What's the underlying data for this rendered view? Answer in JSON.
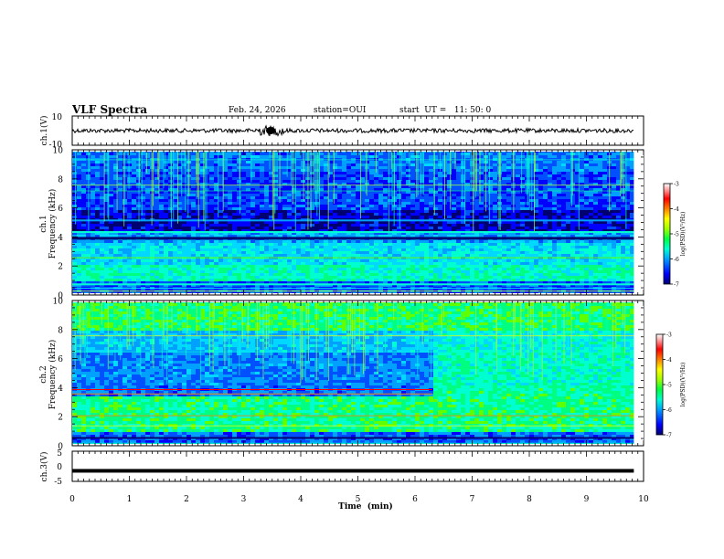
{
  "header": {
    "title": "VLF Spectra",
    "date": "Feb. 24, 2026",
    "station": "station=OUI",
    "start": "start  UT =   11: 50: 0"
  },
  "chart_data": [
    {
      "type": "line",
      "panel": "ch1-waveform",
      "ylabel": "ch.1(V)",
      "ylim": [
        -10,
        10
      ],
      "ytick_labels": [
        "10",
        "-10"
      ],
      "baseline": 0
    },
    {
      "type": "heatmap",
      "panel": "ch1-spectrogram",
      "ylabel": "ch.1\nFrequency (kHz)",
      "ylim": [
        0,
        10
      ],
      "ytick_labels": [
        "0",
        "2",
        "4",
        "6",
        "8",
        "10"
      ],
      "colorbar": {
        "label": "log(PSD)(V²/Hz)",
        "range": [
          -7,
          -3
        ],
        "tick_labels": [
          "-7",
          "-6",
          "-5",
          "-4",
          "-3"
        ],
        "colors": [
          "#000070",
          "#0000ff",
          "#00a0ff",
          "#00ffd0",
          "#00ff40",
          "#a0ff00",
          "#ffff00",
          "#ff8000",
          "#ff0000",
          "#ff9090",
          "#ffffff"
        ]
      }
    },
    {
      "type": "heatmap",
      "panel": "ch2-spectrogram",
      "ylabel": "ch.2\nFrequency (kHz)",
      "ylim": [
        0,
        10
      ],
      "ytick_labels": [
        "0",
        "2",
        "4",
        "6",
        "8",
        "10"
      ],
      "colorbar": {
        "label": "log(PSD)(V²/Hz)",
        "range": [
          -7,
          -3
        ],
        "tick_labels": [
          "-7",
          "-6",
          "-5",
          "-4",
          "-3"
        ],
        "colors": [
          "#000070",
          "#0000ff",
          "#00a0ff",
          "#00ffd0",
          "#00ff40",
          "#a0ff00",
          "#ffff00",
          "#ff8000",
          "#ff0000",
          "#ff9090",
          "#ffffff"
        ]
      }
    },
    {
      "type": "line",
      "panel": "ch3-waveform",
      "ylabel": "ch.3(V)",
      "ylim": [
        -5,
        5
      ],
      "ytick_labels": [
        "5",
        "0",
        "-5"
      ],
      "baseline": -1.5
    }
  ],
  "xaxis": {
    "label": "Time  (min)",
    "xlim": [
      0,
      10
    ],
    "data_end": 9.83,
    "tick_labels": [
      "0",
      "1",
      "2",
      "3",
      "4",
      "5",
      "6",
      "7",
      "8",
      "9",
      "10"
    ]
  }
}
